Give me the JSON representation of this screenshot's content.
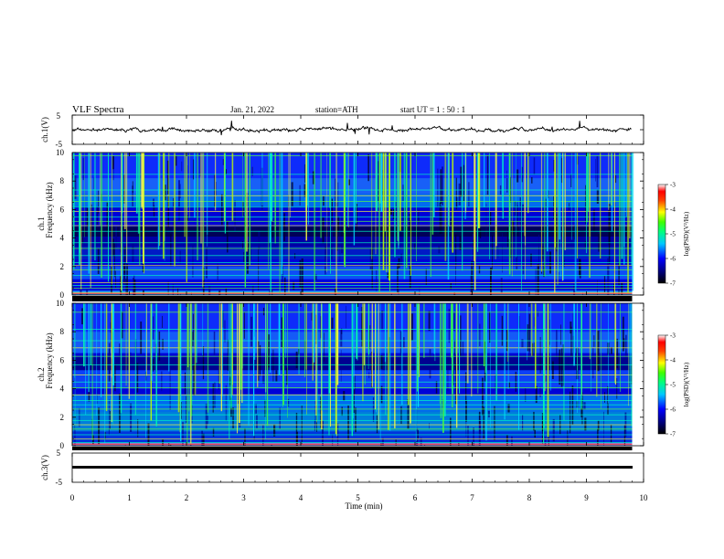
{
  "header": {
    "title": "VLF Spectra",
    "date": "Jan. 21, 2022",
    "station": "station=ATH",
    "start": "start  UT  =   1 : 50 : 1"
  },
  "chart_data": [
    {
      "type": "line",
      "name": "ch1-voltage",
      "ylabel": "ch.1(V)",
      "yticks": [
        "5",
        "-5"
      ],
      "ylim": [
        -5,
        5
      ]
    },
    {
      "type": "heatmap",
      "name": "ch1-spectrogram",
      "ylabel_top": "ch.1",
      "ylabel": "Frequency  (kHz)",
      "yticks": [
        "0",
        "2",
        "4",
        "6",
        "8",
        "10"
      ],
      "ylim": [
        0,
        10
      ],
      "colorbar": {
        "label": "log(PSD)(V²/Hz)",
        "ticks": [
          "-3",
          "-4",
          "-5",
          "-6",
          "-7"
        ]
      }
    },
    {
      "type": "heatmap",
      "name": "ch2-spectrogram",
      "ylabel_top": "ch.2",
      "ylabel": "Frequency  (kHz)",
      "yticks": [
        "0",
        "2",
        "4",
        "6",
        "8",
        "10"
      ],
      "ylim": [
        0,
        10
      ],
      "colorbar": {
        "label": "log(PSD)(V²/Hz)",
        "ticks": [
          "-3",
          "-4",
          "-5",
          "-6",
          "-7"
        ]
      }
    },
    {
      "type": "line",
      "name": "ch3-voltage",
      "ylabel": "ch.3(V)",
      "yticks": [
        "5",
        "-5"
      ],
      "ylim": [
        -5,
        5
      ]
    }
  ],
  "xaxis": {
    "label": "Time  (min)",
    "ticks": [
      "0",
      "1",
      "2",
      "3",
      "4",
      "5",
      "6",
      "7",
      "8",
      "9",
      "10"
    ],
    "xlim": [
      0,
      10
    ],
    "data_end": 9.8
  },
  "colors": {
    "axis": "#000000",
    "background": "#ffffff"
  }
}
